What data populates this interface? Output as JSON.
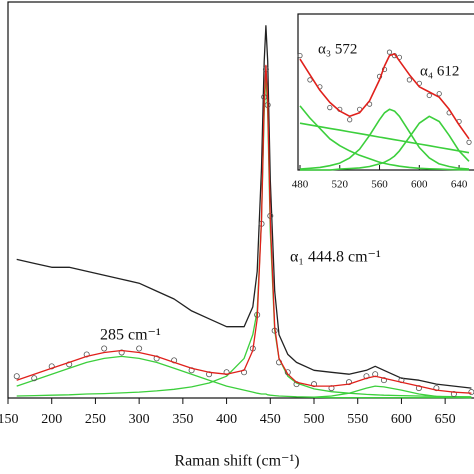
{
  "chart_data": [
    {
      "type": "line",
      "xlabel": "Raman shift (cm⁻¹)",
      "xlim": [
        150,
        683
      ],
      "ylim": [
        0,
        100
      ],
      "xticks": [
        150,
        200,
        250,
        300,
        350,
        400,
        450,
        500,
        550,
        600,
        650
      ],
      "x": [
        160,
        180,
        200,
        220,
        240,
        260,
        280,
        300,
        320,
        340,
        360,
        380,
        400,
        420,
        430,
        435,
        440,
        443,
        445,
        447,
        450,
        455,
        460,
        470,
        480,
        500,
        520,
        540,
        560,
        570,
        580,
        600,
        620,
        640,
        660,
        680
      ],
      "series": [
        {
          "color": "#222222",
          "mode": "lines",
          "values": [
            35,
            34,
            33,
            33,
            32,
            31,
            30,
            29,
            27,
            25,
            22,
            20,
            18,
            18,
            23,
            32,
            58,
            85,
            94,
            85,
            55,
            27,
            16,
            11,
            9,
            7,
            6.5,
            6,
            7,
            8,
            7,
            5,
            4.5,
            3.5,
            3,
            2.5
          ]
        },
        {
          "color": "#3ccf3c",
          "mode": "lines",
          "values": [
            3,
            4.5,
            6,
            7.5,
            9,
            10,
            10.5,
            10,
            9,
            7.5,
            6,
            4.5,
            3,
            2,
            1.5,
            1.2,
            1,
            1,
            1,
            0.8,
            0.7,
            0.6,
            0.5,
            0.4,
            0.3,
            0.2,
            0.1,
            0.1,
            0.1,
            0.1,
            0.1,
            0.1,
            0.1,
            0.1,
            0.1,
            0.1
          ]
        },
        {
          "color": "#3ccf3c",
          "mode": "lines",
          "values": [
            0.5,
            0.6,
            0.7,
            0.8,
            1,
            1.1,
            1.3,
            1.5,
            1.8,
            2.2,
            2.8,
            3.8,
            5.5,
            10,
            16,
            22,
            45,
            72,
            82,
            72,
            42,
            17,
            10,
            5.5,
            3.8,
            2.3,
            1.6,
            1.2,
            0.9,
            0.8,
            0.7,
            0.6,
            0.5,
            0.4,
            0.35,
            0.3
          ]
        },
        {
          "color": "#3ccf3c",
          "mode": "lines",
          "values": [
            null,
            null,
            null,
            null,
            null,
            null,
            null,
            null,
            null,
            null,
            null,
            null,
            null,
            null,
            null,
            null,
            null,
            null,
            null,
            null,
            null,
            null,
            null,
            null,
            null,
            0.2,
            0.5,
            1.2,
            2.5,
            3,
            2.8,
            2,
            1,
            0.4,
            0.2,
            0.1
          ]
        },
        {
          "color": "#555555",
          "mode": "markers",
          "values": [
            5.5,
            5,
            8,
            8.5,
            11,
            12.5,
            11.5,
            12.5,
            10,
            9.5,
            7,
            6,
            6.5,
            6.5,
            12.5,
            21,
            44,
            76,
            83,
            74,
            46,
            17,
            9,
            6.5,
            3.5,
            3.5,
            2.5,
            4,
            5.5,
            6,
            4.5,
            4.5,
            2.5,
            2.5,
            1,
            1.5
          ]
        },
        {
          "color": "#e0201b",
          "mode": "lines",
          "values": [
            4.5,
            6,
            7.5,
            9,
            10.5,
            11.5,
            12,
            11.5,
            10.5,
            9,
            7.5,
            6.5,
            6,
            7,
            12,
            20,
            45,
            75,
            84,
            75,
            45,
            18,
            10,
            6,
            4,
            3,
            3,
            3.5,
            5,
            5.5,
            5,
            4,
            3,
            2,
            1.5,
            1.2
          ]
        }
      ],
      "annotations": [
        "α₁ 444.8 cm⁻¹",
        "285 cm⁻¹"
      ]
    },
    {
      "type": "line",
      "xlim": [
        478,
        655
      ],
      "ylim": [
        0,
        90
      ],
      "xticks": [
        480,
        520,
        560,
        600,
        640
      ],
      "x": [
        480,
        490,
        500,
        510,
        520,
        530,
        540,
        550,
        560,
        565,
        570,
        575,
        580,
        590,
        600,
        610,
        620,
        630,
        640,
        650
      ],
      "series": [
        {
          "color": "#555555",
          "mode": "markers",
          "values": [
            66,
            52,
            48,
            36,
            35,
            29,
            35,
            38,
            54,
            58,
            68,
            66,
            65,
            52,
            50,
            43,
            44,
            33,
            28,
            16
          ]
        },
        {
          "color": "#3ccf3c",
          "mode": "lines",
          "values": [
            27,
            26,
            25,
            24,
            23,
            22,
            21,
            20,
            19,
            18.5,
            18,
            17.5,
            17,
            16,
            15,
            14,
            13,
            12,
            11,
            10
          ]
        },
        {
          "color": "#3ccf3c",
          "mode": "lines",
          "values": [
            37,
            30,
            24,
            18,
            14,
            11,
            8.5,
            6.5,
            4.5,
            3.8,
            3.2,
            2.7,
            2.2,
            1.5,
            1,
            0.7,
            0.5,
            0.3,
            0.2,
            0.1
          ]
        },
        {
          "color": "#3ccf3c",
          "mode": "lines",
          "values": [
            0.5,
            1,
            1.5,
            2.5,
            4,
            7,
            12,
            20,
            29,
            33,
            35,
            34,
            31,
            22,
            13,
            7,
            3.5,
            2,
            1,
            0.5
          ]
        },
        {
          "color": "#3ccf3c",
          "mode": "lines",
          "values": [
            0,
            0,
            0,
            0,
            0.5,
            0.8,
            1.2,
            2,
            3.5,
            4.5,
            6,
            8,
            11,
            19,
            27,
            31,
            28,
            20,
            11,
            5
          ]
        },
        {
          "color": "#e0201b",
          "mode": "lines",
          "values": [
            64,
            55,
            46,
            39,
            34,
            31,
            33,
            40,
            52,
            60,
            66,
            67,
            63,
            55,
            48,
            45,
            42,
            35,
            26,
            18
          ]
        }
      ],
      "annotations": [
        "α₃ 572",
        "α₄ 612"
      ]
    }
  ]
}
